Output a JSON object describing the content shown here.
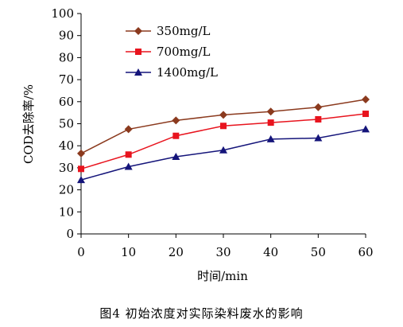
{
  "chart_data": {
    "type": "line",
    "x": [
      0,
      10,
      20,
      30,
      40,
      50,
      60
    ],
    "xlabel": "时间/min",
    "ylabel": "COD去除率/%",
    "xlim": [
      0,
      60
    ],
    "ylim": [
      0,
      100
    ],
    "xticks": [
      "0",
      "10",
      "20",
      "30",
      "40",
      "50",
      "60"
    ],
    "yticks": [
      "0",
      "10",
      "20",
      "30",
      "40",
      "50",
      "60",
      "70",
      "80",
      "90",
      "100"
    ],
    "grid": false,
    "legend_position": "top-left",
    "series": [
      {
        "name": "350mg/L",
        "values": [
          36.5,
          47.5,
          51.5,
          54,
          55.5,
          57.5,
          61
        ],
        "color": "#8B3A1E",
        "marker": "diamond"
      },
      {
        "name": "700mg/L",
        "values": [
          29.5,
          36,
          44.5,
          49,
          50.5,
          52,
          54.5
        ],
        "color": "#E8141E",
        "marker": "square"
      },
      {
        "name": "1400mg/L",
        "values": [
          24.5,
          30.5,
          35,
          38,
          43,
          43.5,
          47.5
        ],
        "color": "#14147A",
        "marker": "triangle"
      }
    ]
  },
  "caption": "图4   初始浓度对实际染料废水的影响"
}
